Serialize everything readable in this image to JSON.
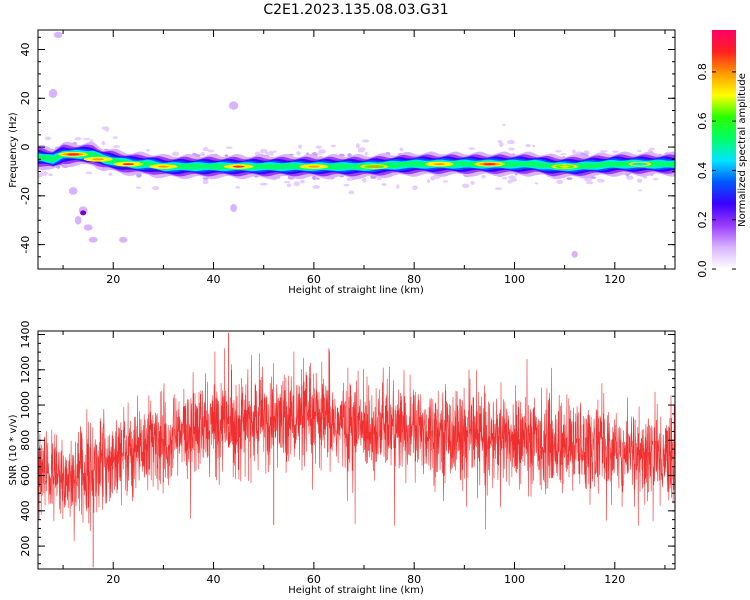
{
  "page": {
    "title": "C2E1.2023.135.08.03.G31"
  },
  "chart_data": [
    {
      "id": "spectrogram",
      "type": "heatmap",
      "xlabel": "Height of straight line (km)",
      "ylabel": "Frequency (Hz)",
      "xlim": [
        5,
        132
      ],
      "ylim": [
        -50,
        48
      ],
      "xticks": [
        20,
        40,
        60,
        80,
        100,
        120
      ],
      "yticks": [
        -40,
        -20,
        0,
        20,
        40
      ],
      "colorbar": {
        "label": "Normalized spectral amplitude",
        "range": [
          0,
          0.97
        ],
        "ticks": [
          "0.0",
          "0.2",
          "0.4",
          "0.6",
          "0.8"
        ],
        "tick_values": [
          0,
          0.2,
          0.4,
          0.6,
          0.8
        ],
        "colormap": [
          "#ffffff",
          "#d9b3ff",
          "#9a3cff",
          "#3a00ff",
          "#0057ff",
          "#00e5ff",
          "#00ff66",
          "#2aff00",
          "#ffff00",
          "#ff9900",
          "#ff2020",
          "#ff0066"
        ]
      },
      "ridge": [
        [
          5,
          -4
        ],
        [
          8,
          -5
        ],
        [
          10,
          -3
        ],
        [
          12,
          -3
        ],
        [
          14,
          -3
        ],
        [
          16,
          -3
        ],
        [
          18,
          -5
        ],
        [
          21,
          -6
        ],
        [
          24,
          -7
        ],
        [
          27,
          -7
        ],
        [
          30,
          -8
        ],
        [
          40,
          -8
        ],
        [
          60,
          -8
        ],
        [
          70,
          -8
        ],
        [
          80,
          -7
        ],
        [
          90,
          -7
        ],
        [
          100,
          -7
        ],
        [
          104,
          -7
        ],
        [
          108,
          -8
        ],
        [
          112,
          -8
        ],
        [
          120,
          -7
        ],
        [
          132,
          -7
        ]
      ],
      "ridge_peaks": [
        [
          12,
          -3,
          0.92
        ],
        [
          17,
          -5,
          0.85
        ],
        [
          23,
          -7,
          0.88
        ],
        [
          30,
          -8,
          0.82
        ],
        [
          45,
          -8,
          0.9
        ],
        [
          60,
          -8,
          0.85
        ],
        [
          72,
          -8,
          0.8
        ],
        [
          85,
          -7,
          0.85
        ],
        [
          95,
          -7,
          0.95
        ],
        [
          110,
          -8,
          0.75
        ],
        [
          125,
          -7,
          0.55
        ]
      ],
      "scatter_blobs": [
        [
          9,
          46
        ],
        [
          8,
          22
        ],
        [
          12,
          -18
        ],
        [
          13,
          -30
        ],
        [
          14,
          -26
        ],
        [
          15,
          -33
        ],
        [
          16,
          -38
        ],
        [
          22,
          -38
        ],
        [
          44,
          -25
        ],
        [
          44,
          17
        ],
        [
          112,
          -44
        ]
      ]
    },
    {
      "id": "snr",
      "type": "line",
      "xlabel": "Height of straight line (km)",
      "ylabel": "SNR (10 * v/v)",
      "xlim": [
        5,
        132
      ],
      "ylim": [
        70,
        1420
      ],
      "xticks": [
        20,
        40,
        60,
        80,
        100,
        120
      ],
      "yticks": [
        200,
        400,
        600,
        800,
        1000,
        1200,
        1400
      ],
      "color": "#f03030",
      "trend": [
        [
          5,
          600
        ],
        [
          10,
          580
        ],
        [
          15,
          620
        ],
        [
          20,
          700
        ],
        [
          25,
          760
        ],
        [
          30,
          800
        ],
        [
          35,
          840
        ],
        [
          40,
          880
        ],
        [
          45,
          900
        ],
        [
          50,
          910
        ],
        [
          55,
          920
        ],
        [
          60,
          910
        ],
        [
          65,
          890
        ],
        [
          70,
          880
        ],
        [
          75,
          870
        ],
        [
          80,
          860
        ],
        [
          85,
          850
        ],
        [
          90,
          830
        ],
        [
          95,
          810
        ],
        [
          100,
          800
        ],
        [
          105,
          790
        ],
        [
          110,
          770
        ],
        [
          115,
          760
        ],
        [
          120,
          740
        ],
        [
          125,
          720
        ],
        [
          132,
          700
        ]
      ],
      "noise_sd": 130,
      "samples": 3000,
      "notable_points": [
        [
          16,
          80
        ],
        [
          43,
          1410
        ],
        [
          52,
          320
        ],
        [
          63,
          1320
        ]
      ]
    }
  ]
}
